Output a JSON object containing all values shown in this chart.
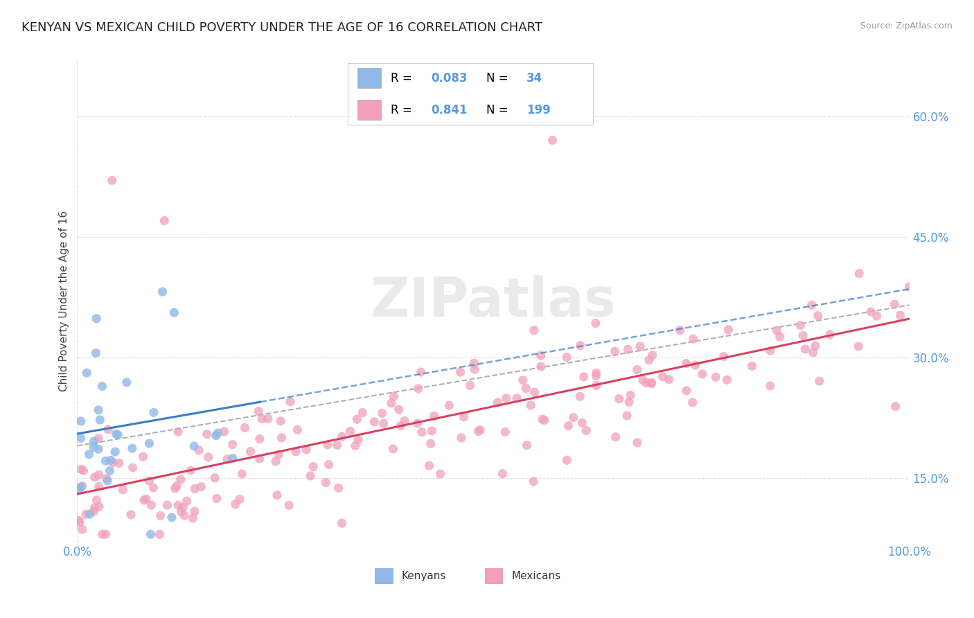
{
  "title": "KENYAN VS MEXICAN CHILD POVERTY UNDER THE AGE OF 16 CORRELATION CHART",
  "source": "Source: ZipAtlas.com",
  "ylabel": "Child Poverty Under the Age of 16",
  "xlim": [
    0.0,
    1.0
  ],
  "ylim": [
    0.07,
    0.67
  ],
  "yticks": [
    0.15,
    0.3,
    0.45,
    0.6
  ],
  "ytick_labels": [
    "15.0%",
    "30.0%",
    "45.0%",
    "60.0%"
  ],
  "xtick_labels": [
    "0.0%",
    "100.0%"
  ],
  "kenya_color": "#90b8e8",
  "mexico_color": "#f0a0b8",
  "kenya_line_color": "#3a7cc9",
  "mexico_line_color": "#d94060",
  "trend_line_color": "#b0b0b0",
  "background_color": "#ffffff",
  "watermark": "ZIPatlas",
  "title_fontsize": 13,
  "axis_label_fontsize": 11,
  "tick_label_color": "#5599dd",
  "legend_text_color": "#000000",
  "legend_value_color": "#5599dd"
}
